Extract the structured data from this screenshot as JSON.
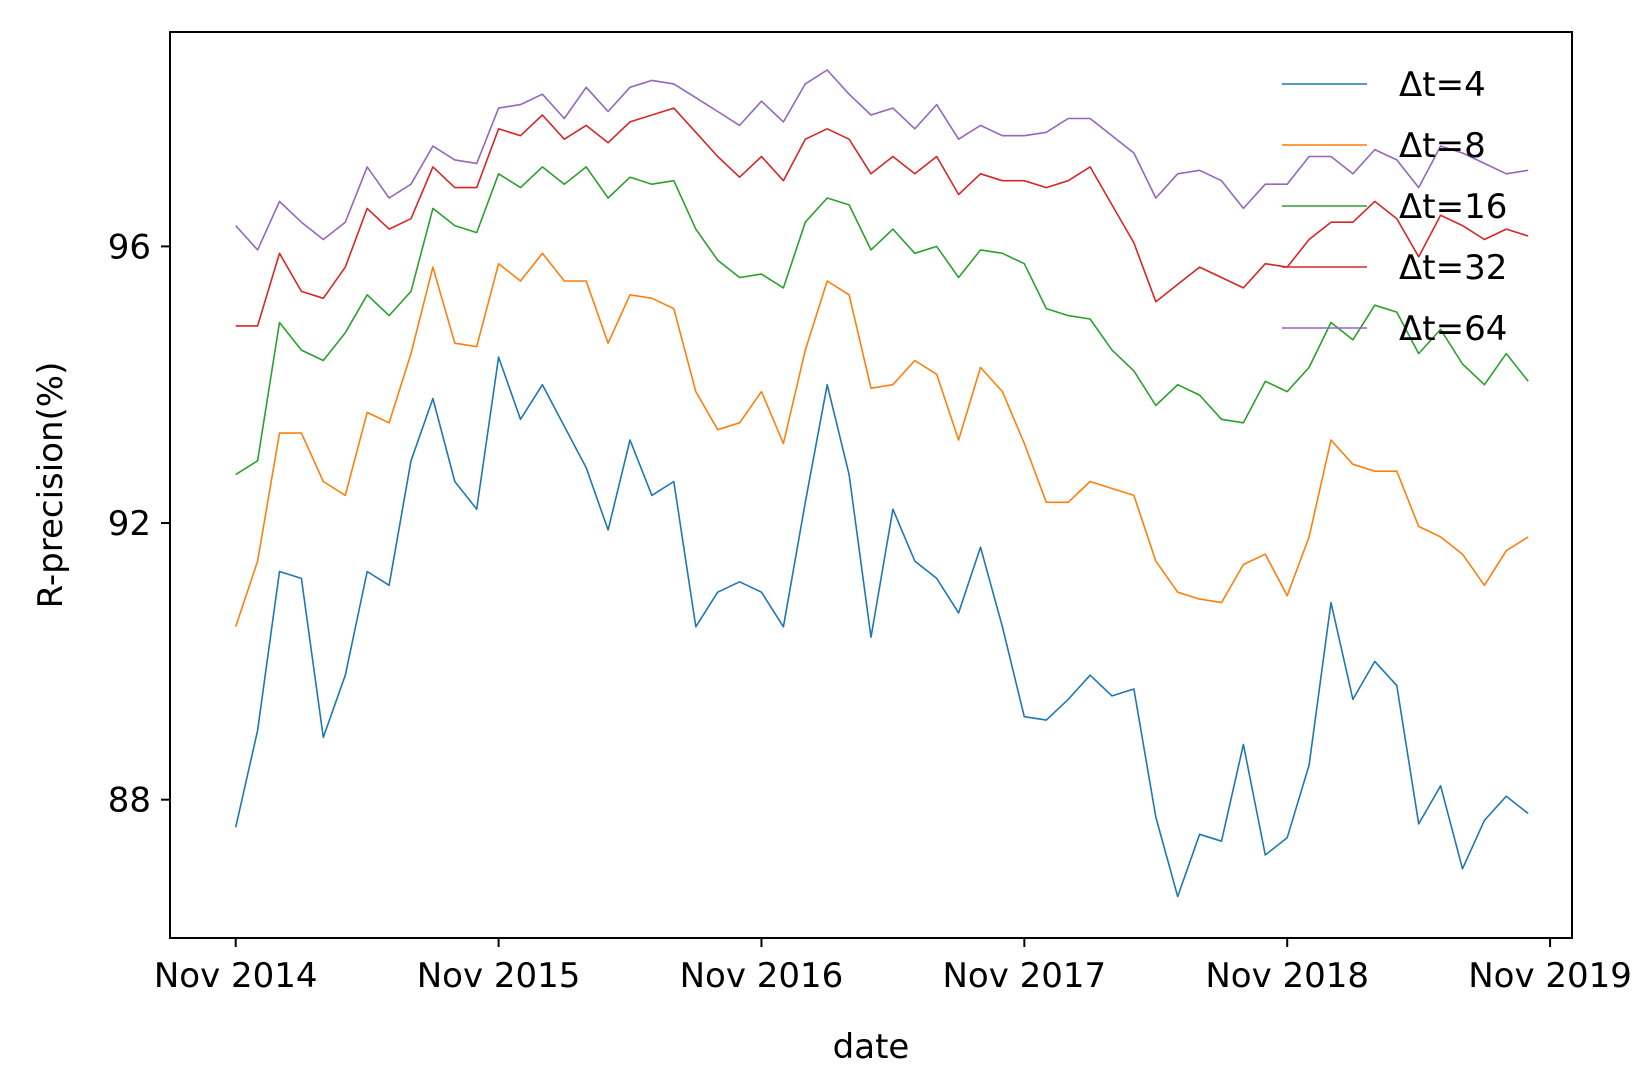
{
  "chart_data": {
    "type": "line",
    "title": "",
    "xlabel": "date",
    "ylabel": "R-precision(%)",
    "x_ticks": [
      "Nov 2014",
      "Nov 2015",
      "Nov 2016",
      "Nov 2017",
      "Nov 2018",
      "Nov 2019"
    ],
    "y_ticks": [
      88,
      92,
      96
    ],
    "ylim": [
      86,
      99.1
    ],
    "xlim": [
      "2014-08",
      "2019-12"
    ],
    "grid": false,
    "legend_position": "top-right",
    "x": [
      "2014-11",
      "2014-12",
      "2015-01",
      "2015-02",
      "2015-03",
      "2015-04",
      "2015-05",
      "2015-06",
      "2015-07",
      "2015-08",
      "2015-09",
      "2015-10",
      "2015-11",
      "2015-12",
      "2016-01",
      "2016-02",
      "2016-03",
      "2016-04",
      "2016-05",
      "2016-06",
      "2016-07",
      "2016-08",
      "2016-09",
      "2016-10",
      "2016-11",
      "2016-12",
      "2017-01",
      "2017-02",
      "2017-03",
      "2017-04",
      "2017-05",
      "2017-06",
      "2017-07",
      "2017-08",
      "2017-09",
      "2017-10",
      "2017-11",
      "2017-12",
      "2018-01",
      "2018-02",
      "2018-03",
      "2018-04",
      "2018-05",
      "2018-06",
      "2018-07",
      "2018-08",
      "2018-09",
      "2018-10",
      "2018-11",
      "2018-12",
      "2019-01",
      "2019-02",
      "2019-03",
      "2019-04",
      "2019-05",
      "2019-06",
      "2019-07",
      "2019-08",
      "2019-09",
      "2019-10"
    ],
    "series": [
      {
        "name": "Δt=4",
        "color": "#1f77b4",
        "values": [
          87.6,
          89.0,
          91.3,
          91.2,
          88.9,
          89.8,
          91.3,
          91.1,
          92.9,
          93.8,
          92.6,
          92.2,
          94.4,
          93.5,
          94.0,
          93.4,
          92.8,
          91.9,
          93.2,
          92.4,
          92.6,
          90.5,
          91.0,
          91.15,
          91.0,
          90.5,
          92.3,
          94.0,
          92.7,
          90.35,
          92.2,
          91.45,
          91.2,
          90.7,
          91.65,
          90.5,
          89.2,
          89.15,
          89.45,
          89.8,
          89.5,
          89.6,
          87.75,
          86.6,
          87.5,
          87.4,
          88.8,
          87.2,
          87.45,
          88.5,
          90.85,
          89.45,
          90.0,
          89.65,
          87.65,
          88.2,
          87.0,
          87.7,
          88.05,
          87.8
        ]
      },
      {
        "name": "Δt=8",
        "color": "#ff7f0e",
        "values": [
          90.5,
          91.45,
          93.3,
          93.3,
          92.6,
          92.4,
          93.6,
          93.45,
          94.45,
          95.7,
          94.6,
          94.55,
          95.75,
          95.5,
          95.9,
          95.5,
          95.5,
          94.6,
          95.3,
          95.25,
          95.1,
          93.9,
          93.35,
          93.45,
          93.9,
          93.15,
          94.5,
          95.5,
          95.3,
          93.95,
          94.0,
          94.35,
          94.15,
          93.2,
          94.25,
          93.9,
          93.15,
          92.3,
          92.3,
          92.6,
          92.5,
          92.4,
          91.45,
          91.0,
          90.9,
          90.85,
          91.4,
          91.55,
          90.95,
          91.8,
          93.2,
          92.85,
          92.75,
          92.75,
          91.95,
          91.8,
          91.55,
          91.1,
          91.6,
          91.8
        ]
      },
      {
        "name": "Δt=16",
        "color": "#2ca02c",
        "values": [
          92.7,
          92.9,
          94.9,
          94.5,
          94.35,
          94.75,
          95.3,
          95.0,
          95.35,
          96.55,
          96.3,
          96.2,
          97.05,
          96.85,
          97.15,
          96.9,
          97.15,
          96.7,
          97.0,
          96.9,
          96.95,
          96.25,
          95.8,
          95.55,
          95.6,
          95.4,
          96.35,
          96.7,
          96.6,
          95.95,
          96.25,
          95.9,
          96.0,
          95.55,
          95.95,
          95.9,
          95.75,
          95.1,
          95.0,
          94.95,
          94.5,
          94.2,
          93.7,
          94.0,
          93.85,
          93.5,
          93.45,
          94.05,
          93.9,
          94.25,
          94.9,
          94.65,
          95.15,
          95.05,
          94.45,
          94.8,
          94.3,
          94.0,
          94.45,
          94.05
        ]
      },
      {
        "name": "Δt=32",
        "color": "#d62728",
        "values": [
          94.85,
          94.85,
          95.9,
          95.35,
          95.25,
          95.7,
          96.55,
          96.25,
          96.4,
          97.15,
          96.85,
          96.85,
          97.7,
          97.6,
          97.9,
          97.55,
          97.75,
          97.5,
          97.8,
          97.9,
          98.0,
          97.65,
          97.3,
          97.0,
          97.3,
          96.95,
          97.55,
          97.7,
          97.55,
          97.05,
          97.3,
          97.05,
          97.3,
          96.75,
          97.05,
          96.95,
          96.95,
          96.85,
          96.95,
          97.15,
          96.6,
          96.05,
          95.2,
          95.45,
          95.7,
          95.55,
          95.4,
          95.75,
          95.7,
          96.1,
          96.35,
          96.35,
          96.65,
          96.4,
          95.85,
          96.45,
          96.3,
          96.1,
          96.25,
          96.15
        ]
      },
      {
        "name": "Δt=64",
        "color": "#9467bd",
        "values": [
          96.3,
          95.95,
          96.65,
          96.35,
          96.1,
          96.35,
          97.15,
          96.7,
          96.9,
          97.45,
          97.25,
          97.2,
          98.0,
          98.05,
          98.2,
          97.85,
          98.3,
          97.95,
          98.3,
          98.4,
          98.35,
          98.15,
          97.95,
          97.75,
          98.1,
          97.8,
          98.35,
          98.55,
          98.2,
          97.9,
          98.0,
          97.7,
          98.05,
          97.55,
          97.75,
          97.6,
          97.6,
          97.65,
          97.85,
          97.85,
          97.6,
          97.35,
          96.7,
          97.05,
          97.1,
          96.95,
          96.55,
          96.9,
          96.9,
          97.3,
          97.3,
          97.05,
          97.4,
          97.25,
          96.85,
          97.45,
          97.35,
          97.2,
          97.05,
          97.1
        ]
      }
    ]
  }
}
